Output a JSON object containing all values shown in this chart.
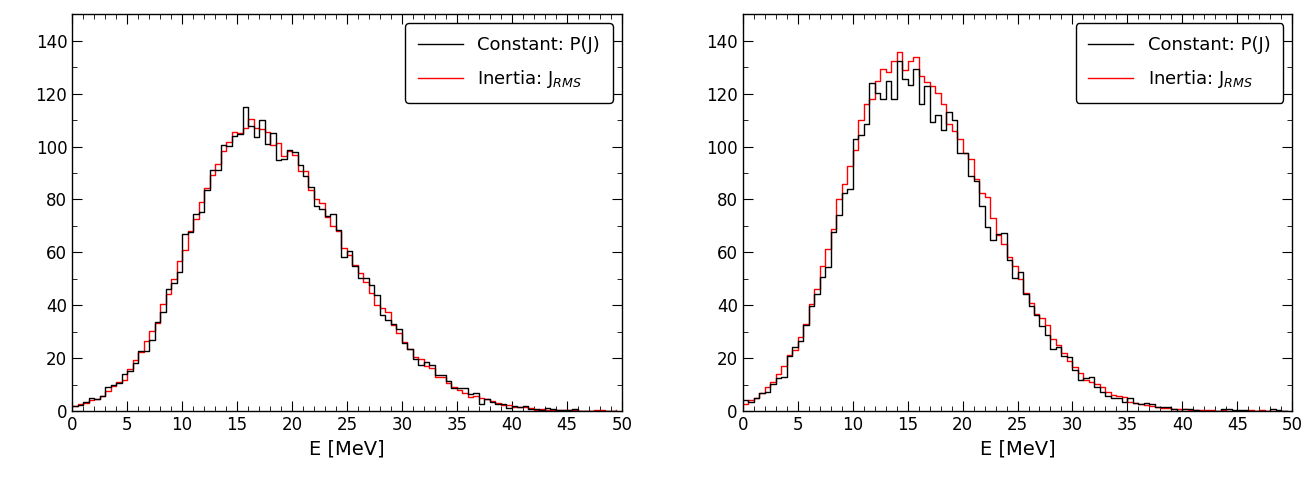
{
  "xlim": [
    0,
    50
  ],
  "ylim": [
    0,
    150
  ],
  "xlabel": "E [MeV]",
  "xticks": [
    0,
    5,
    10,
    15,
    20,
    25,
    30,
    35,
    40,
    45,
    50
  ],
  "yticks": [
    0,
    20,
    40,
    60,
    80,
    100,
    120,
    140
  ],
  "color_black": "#000000",
  "color_red": "#ff0000",
  "legend_label_black": "Constant: P(J)",
  "legend_label_red": "Inertia: J$_{RMS}$",
  "linewidth": 1.0,
  "background_color": "#ffffff",
  "legend_fontsize": 13,
  "tick_labelsize": 12,
  "xlabel_fontsize": 14
}
